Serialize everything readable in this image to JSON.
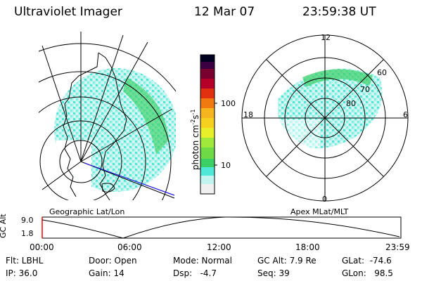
{
  "header": {
    "instrument": "Ultraviolet Imager",
    "date": "12 Mar 07",
    "time": "23:59:38 UT"
  },
  "left_panel": {
    "caption": "Geographic Lat/Lon"
  },
  "colorbar": {
    "unit_label": "photon cm",
    "unit_sup1": "-2",
    "unit_mid": "s",
    "unit_sup2": "-1",
    "ticks": [
      "100",
      "10"
    ],
    "colors": [
      "#f0f0f0",
      "#bff5ee",
      "#4fe8d8",
      "#3ccf66",
      "#9fe83c",
      "#e6ef2a",
      "#f6b51e",
      "#f07a10",
      "#e03010",
      "#b5002a",
      "#7a0030",
      "#3a0040",
      "#000020"
    ]
  },
  "right_panel": {
    "caption": "Apex MLat/MLT",
    "mlt_labels": {
      "top": "12",
      "left": "18",
      "right": "6",
      "bottom": "0"
    },
    "lat_labels": [
      "60",
      "70",
      "80"
    ]
  },
  "timeline": {
    "axis_label": "GC Alt",
    "y_ticks": [
      "9.0",
      "1.8"
    ],
    "x_ticks": [
      "00:00",
      "06:00",
      "12:00",
      "18:00",
      "23:59"
    ],
    "line_color": "#000000",
    "marker_color": "#ff0000"
  },
  "status": {
    "flt": "Flt: LBHL",
    "ip": "IP: 36.0",
    "door": "Door: Open",
    "gain": "Gain: 14",
    "mode": "Mode: Normal",
    "dsp": "Dsp:   -4.7",
    "gcalt": "GC Alt: 7.9 Re",
    "seq": "Seq: 39",
    "glat": "GLat:  -74.6",
    "glon": "GLon:   98.5"
  }
}
